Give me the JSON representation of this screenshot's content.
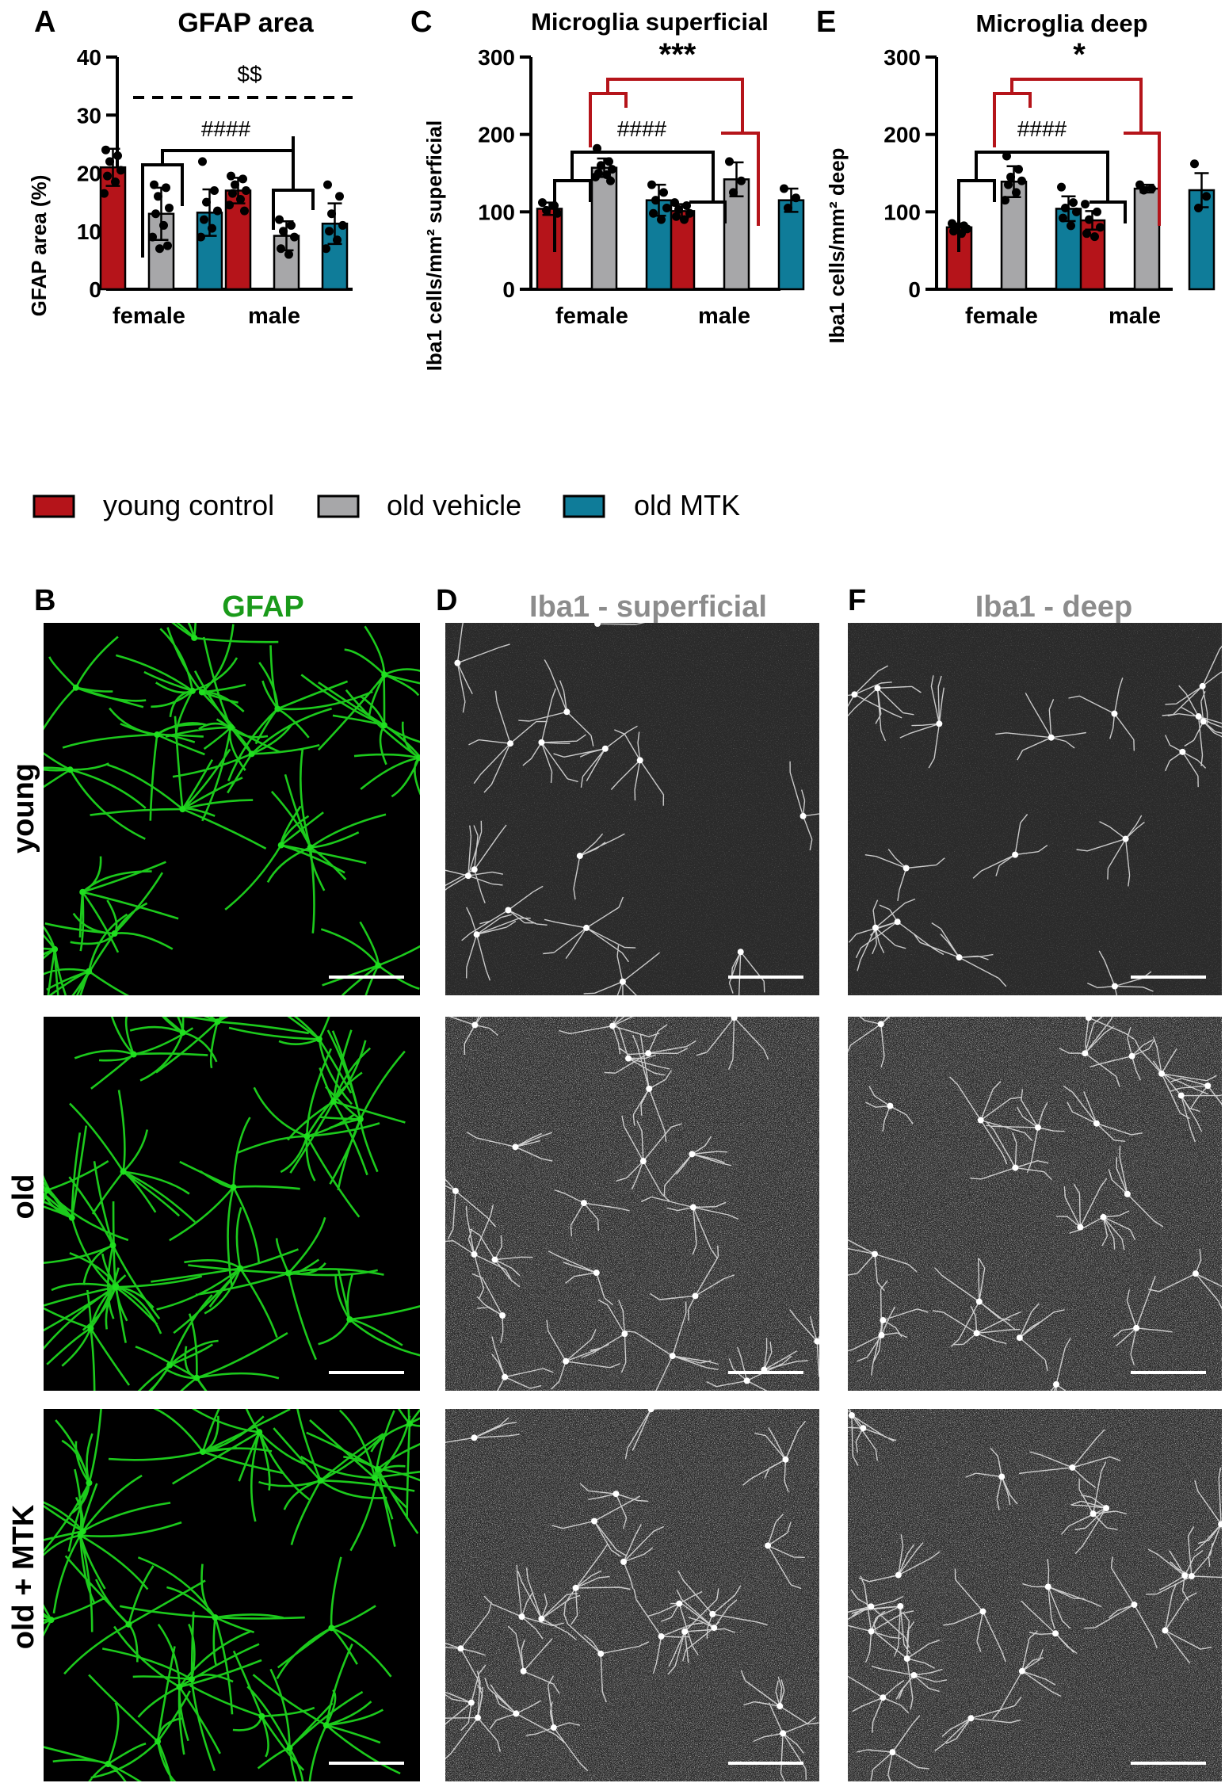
{
  "colors": {
    "young_control": "#b5141a",
    "old_vehicle": "#a7a7a9",
    "old_mtk": "#0f7c99",
    "sig_black": "#000000",
    "sig_red": "#b5141a",
    "gfap_green": "#1fe01f",
    "gfap_title": "#1a9a1a",
    "iba_title": "#8c8c8c"
  },
  "legend": [
    {
      "key": "young_control",
      "label": "young control"
    },
    {
      "key": "old_vehicle",
      "label": "old vehicle"
    },
    {
      "key": "old_mtk",
      "label": "old MTK"
    }
  ],
  "chart_data": [
    {
      "panel": "A",
      "type": "bar",
      "title": "GFAP area",
      "ylabel": "GFAP area (%)",
      "ylim": [
        0,
        40
      ],
      "yticks": [
        0,
        10,
        20,
        30,
        40
      ],
      "categories": [
        "female",
        "male"
      ],
      "series": [
        {
          "name": "young control",
          "key": "young_control",
          "values": [
            21,
            17
          ],
          "errors": [
            3.2,
            2.2
          ],
          "points": [
            [
              24,
              23,
              22,
              20.5,
              19.5,
              18.5,
              16.5
            ],
            [
              19.5,
              19,
              18,
              17,
              16.5,
              15.5,
              14.5,
              13.5
            ]
          ]
        },
        {
          "name": "old vehicle",
          "key": "old_vehicle",
          "values": [
            13,
            9.2
          ],
          "errors": [
            4.5,
            2.5
          ],
          "points": [
            [
              18,
              17.5,
              16,
              14,
              13,
              11,
              9,
              7.5,
              7
            ],
            [
              12,
              11,
              10,
              9,
              7,
              6
            ]
          ]
        },
        {
          "name": "old MTK",
          "key": "old_mtk",
          "values": [
            13.2,
            11.3
          ],
          "errors": [
            4,
            3.5
          ],
          "points": [
            [
              22,
              17,
              15,
              13.5,
              12,
              10.5,
              9
            ],
            [
              18,
              16,
              13,
              11,
              10,
              8.5,
              7
            ]
          ]
        }
      ],
      "annotations": [
        {
          "text": "$$"
        },
        {
          "text": "####"
        }
      ]
    },
    {
      "panel": "C",
      "type": "bar",
      "title": "Microglia superficial",
      "ylabel": "Iba1 cells/mm² superficial",
      "ylim": [
        0,
        300
      ],
      "yticks": [
        0,
        100,
        200,
        300
      ],
      "categories": [
        "female",
        "male"
      ],
      "series": [
        {
          "name": "young control",
          "key": "young_control",
          "values": [
            104,
            101
          ],
          "errors": [
            8,
            9
          ],
          "points": [
            [
              112,
              108,
              102,
              98
            ],
            [
              112,
              108,
              103,
              98,
              94,
              90
            ]
          ]
        },
        {
          "name": "old vehicle",
          "key": "old_vehicle",
          "values": [
            157,
            142
          ],
          "errors": [
            12,
            22
          ],
          "points": [
            [
              182,
              165,
              160,
              155,
              150,
              148,
              145,
              140
            ],
            [
              165,
              140,
              125
            ]
          ]
        },
        {
          "name": "old MTK",
          "key": "old_mtk",
          "values": [
            115,
            115
          ],
          "errors": [
            20,
            15
          ],
          "points": [
            [
              135,
              125,
              115,
              105,
              98,
              90
            ],
            [
              130,
              118,
              105
            ]
          ]
        }
      ],
      "annotations": [
        {
          "text": "***"
        },
        {
          "text": "####"
        }
      ]
    },
    {
      "panel": "E",
      "type": "bar",
      "title": "Microglia deep",
      "ylabel": "Iba1 cells/mm² deep",
      "ylim": [
        0,
        300
      ],
      "yticks": [
        0,
        100,
        200,
        300
      ],
      "categories": [
        "female",
        "male"
      ],
      "series": [
        {
          "name": "young control",
          "key": "young_control",
          "values": [
            80,
            89
          ],
          "errors": [
            5,
            12
          ],
          "points": [
            [
              85,
              82,
              80,
              78,
              75,
              72
            ],
            [
              110,
              100,
              90,
              80,
              72,
              68
            ]
          ]
        },
        {
          "name": "old vehicle",
          "key": "old_vehicle",
          "values": [
            139,
            130
          ],
          "errors": [
            20,
            5
          ],
          "points": [
            [
              172,
              155,
              145,
              140,
              135,
              125,
              115
            ],
            [
              135,
              130,
              128
            ]
          ]
        },
        {
          "name": "old MTK",
          "key": "old_mtk",
          "values": [
            104,
            128
          ],
          "errors": [
            16,
            22
          ],
          "points": [
            [
              132,
              112,
              105,
              100,
              92,
              82
            ],
            [
              162,
              120,
              105
            ]
          ]
        }
      ],
      "annotations": [
        {
          "text": "*"
        },
        {
          "text": "####"
        }
      ]
    }
  ],
  "images": {
    "B": {
      "letter": "B",
      "title": "GFAP"
    },
    "D": {
      "letter": "D",
      "title": "Iba1 - superficial"
    },
    "F": {
      "letter": "F",
      "title": "Iba1 - deep"
    }
  },
  "row_labels": [
    "young",
    "old",
    "old + MTK"
  ]
}
